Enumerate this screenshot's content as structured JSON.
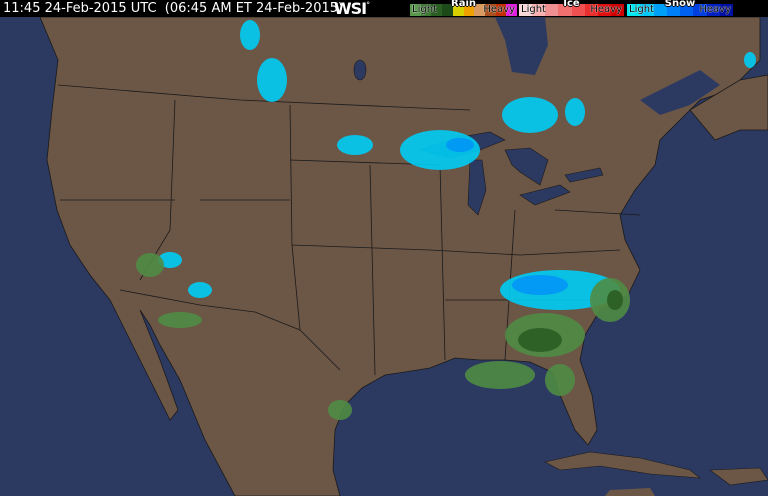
{
  "header": {
    "timestamp": "11:45 24-Feb-2015 UTC  (06:45 AM ET 24-Feb-2015)",
    "logo": "WSI"
  },
  "legend": [
    {
      "title": "Rain",
      "light": "Light",
      "heavy": "Heavy",
      "colors": [
        "#5b9a4e",
        "#3f7a35",
        "#2a5e22",
        "#1c4a18",
        "#d8d000",
        "#f0a000",
        "#d89a60",
        "#a85020",
        "#c03000",
        "#e020e0"
      ]
    },
    {
      "title": "Ice",
      "light": "Light",
      "heavy": "Heavy",
      "colors": [
        "#f8d8d8",
        "#f8b0b0",
        "#f09090",
        "#f07070",
        "#f05050",
        "#e83030",
        "#e01010",
        "#d00000"
      ]
    },
    {
      "title": "Snow",
      "light": "Light",
      "heavy": "Heavy",
      "colors": [
        "#00e8f0",
        "#00c8f8",
        "#00a0f8",
        "#0080f8",
        "#0060f0",
        "#0040e0",
        "#0020c0",
        "#0010a0"
      ]
    }
  ],
  "colors": {
    "land": "#6c5646",
    "water": "#2c3a62",
    "borders": "#1a1a1a"
  }
}
